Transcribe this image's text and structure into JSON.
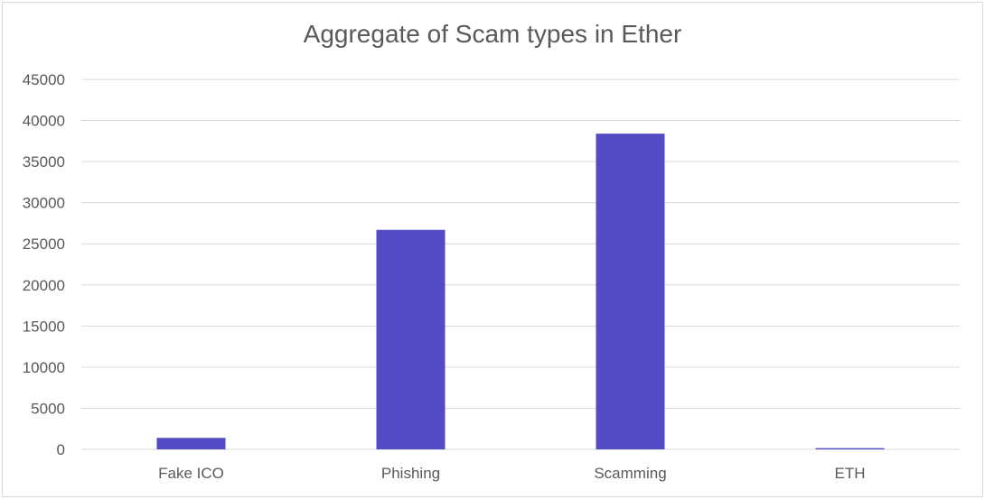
{
  "chart_data": {
    "type": "bar",
    "title": "Aggregate of Scam types in Ether",
    "categories": [
      "Fake ICO",
      "Phishing",
      "Scamming",
      "ETH"
    ],
    "values": [
      1400,
      26700,
      38400,
      150
    ],
    "xlabel": "",
    "ylabel": "",
    "ylim": [
      0,
      45000
    ],
    "yticks": [
      0,
      5000,
      10000,
      15000,
      20000,
      25000,
      30000,
      35000,
      40000,
      45000
    ],
    "grid": true,
    "legend": "none",
    "colors": {
      "bar": "#524bc4",
      "grid": "#d9d9d9",
      "text": "#595959"
    }
  }
}
